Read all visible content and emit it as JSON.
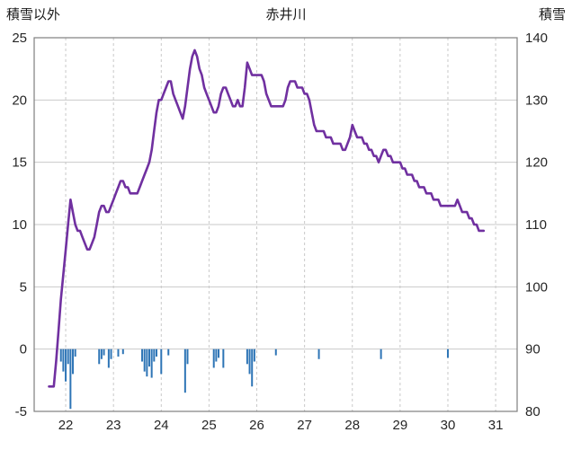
{
  "chart_data": {
    "type": "line",
    "title": "赤井川",
    "left_axis": {
      "title": "積雪以外",
      "min": -5,
      "max": 25,
      "ticks": [
        25,
        20,
        15,
        10,
        5,
        0,
        -5
      ]
    },
    "right_axis": {
      "title": "積雪",
      "min": 80,
      "max": 140,
      "ticks": [
        140,
        130,
        120,
        110,
        100,
        90,
        80
      ]
    },
    "x_axis": {
      "min": 21.34,
      "max": 31.45,
      "ticks": [
        22,
        23,
        24,
        25,
        26,
        27,
        28,
        29,
        30,
        31
      ]
    },
    "grid": {
      "horizontal": "solid",
      "vertical": "dashed"
    },
    "colors": {
      "line": "#7030A0",
      "bar": "#2E75B6",
      "grid": "#c9c9c9",
      "border": "#7f7f7f",
      "tick_text": "#262626"
    },
    "series": [
      {
        "name": "積雪",
        "axis": "right",
        "type": "line",
        "color": "#7030A0",
        "points": [
          [
            21.65,
            84
          ],
          [
            21.7,
            84
          ],
          [
            21.75,
            84
          ],
          [
            21.8,
            88
          ],
          [
            21.85,
            93
          ],
          [
            21.9,
            98
          ],
          [
            21.95,
            102
          ],
          [
            22.0,
            106
          ],
          [
            22.05,
            110
          ],
          [
            22.1,
            114
          ],
          [
            22.15,
            112
          ],
          [
            22.2,
            110
          ],
          [
            22.25,
            109
          ],
          [
            22.3,
            109
          ],
          [
            22.35,
            108
          ],
          [
            22.4,
            107
          ],
          [
            22.45,
            106
          ],
          [
            22.5,
            106
          ],
          [
            22.55,
            107
          ],
          [
            22.6,
            108
          ],
          [
            22.65,
            110
          ],
          [
            22.7,
            112
          ],
          [
            22.75,
            113
          ],
          [
            22.8,
            113
          ],
          [
            22.85,
            112
          ],
          [
            22.9,
            112
          ],
          [
            22.95,
            113
          ],
          [
            23.0,
            114
          ],
          [
            23.05,
            115
          ],
          [
            23.1,
            116
          ],
          [
            23.15,
            117
          ],
          [
            23.2,
            117
          ],
          [
            23.25,
            116
          ],
          [
            23.3,
            116
          ],
          [
            23.35,
            115
          ],
          [
            23.4,
            115
          ],
          [
            23.45,
            115
          ],
          [
            23.5,
            115
          ],
          [
            23.55,
            116
          ],
          [
            23.6,
            117
          ],
          [
            23.65,
            118
          ],
          [
            23.7,
            119
          ],
          [
            23.75,
            120
          ],
          [
            23.8,
            122
          ],
          [
            23.85,
            125
          ],
          [
            23.9,
            128
          ],
          [
            23.95,
            130
          ],
          [
            24.0,
            130
          ],
          [
            24.05,
            131
          ],
          [
            24.1,
            132
          ],
          [
            24.15,
            133
          ],
          [
            24.2,
            133
          ],
          [
            24.25,
            131
          ],
          [
            24.3,
            130
          ],
          [
            24.35,
            129
          ],
          [
            24.4,
            128
          ],
          [
            24.45,
            127
          ],
          [
            24.5,
            129
          ],
          [
            24.55,
            132
          ],
          [
            24.6,
            135
          ],
          [
            24.65,
            137
          ],
          [
            24.7,
            138
          ],
          [
            24.75,
            137
          ],
          [
            24.8,
            135
          ],
          [
            24.85,
            134
          ],
          [
            24.9,
            132
          ],
          [
            24.95,
            131
          ],
          [
            25.0,
            130
          ],
          [
            25.05,
            129
          ],
          [
            25.1,
            128
          ],
          [
            25.15,
            128
          ],
          [
            25.2,
            129
          ],
          [
            25.25,
            131
          ],
          [
            25.3,
            132
          ],
          [
            25.35,
            132
          ],
          [
            25.4,
            131
          ],
          [
            25.45,
            130
          ],
          [
            25.5,
            129
          ],
          [
            25.55,
            129
          ],
          [
            25.6,
            130
          ],
          [
            25.65,
            129
          ],
          [
            25.7,
            129
          ],
          [
            25.75,
            132
          ],
          [
            25.8,
            136
          ],
          [
            25.85,
            135
          ],
          [
            25.9,
            134
          ],
          [
            25.95,
            134
          ],
          [
            26.0,
            134
          ],
          [
            26.05,
            134
          ],
          [
            26.1,
            134
          ],
          [
            26.15,
            133
          ],
          [
            26.2,
            131
          ],
          [
            26.25,
            130
          ],
          [
            26.3,
            129
          ],
          [
            26.35,
            129
          ],
          [
            26.4,
            129
          ],
          [
            26.45,
            129
          ],
          [
            26.5,
            129
          ],
          [
            26.55,
            129
          ],
          [
            26.6,
            130
          ],
          [
            26.65,
            132
          ],
          [
            26.7,
            133
          ],
          [
            26.75,
            133
          ],
          [
            26.8,
            133
          ],
          [
            26.85,
            132
          ],
          [
            26.9,
            132
          ],
          [
            26.95,
            132
          ],
          [
            27.0,
            131
          ],
          [
            27.05,
            131
          ],
          [
            27.1,
            130
          ],
          [
            27.15,
            128
          ],
          [
            27.2,
            126
          ],
          [
            27.25,
            125
          ],
          [
            27.3,
            125
          ],
          [
            27.35,
            125
          ],
          [
            27.4,
            125
          ],
          [
            27.45,
            124
          ],
          [
            27.5,
            124
          ],
          [
            27.55,
            124
          ],
          [
            27.6,
            123
          ],
          [
            27.65,
            123
          ],
          [
            27.7,
            123
          ],
          [
            27.75,
            123
          ],
          [
            27.8,
            122
          ],
          [
            27.85,
            122
          ],
          [
            27.9,
            123
          ],
          [
            27.95,
            124
          ],
          [
            28.0,
            126
          ],
          [
            28.05,
            125
          ],
          [
            28.1,
            124
          ],
          [
            28.15,
            124
          ],
          [
            28.2,
            124
          ],
          [
            28.25,
            123
          ],
          [
            28.3,
            123
          ],
          [
            28.35,
            122
          ],
          [
            28.4,
            122
          ],
          [
            28.45,
            121
          ],
          [
            28.5,
            121
          ],
          [
            28.55,
            120
          ],
          [
            28.6,
            121
          ],
          [
            28.65,
            122
          ],
          [
            28.7,
            122
          ],
          [
            28.75,
            121
          ],
          [
            28.8,
            121
          ],
          [
            28.85,
            120
          ],
          [
            28.9,
            120
          ],
          [
            28.95,
            120
          ],
          [
            29.0,
            120
          ],
          [
            29.05,
            119
          ],
          [
            29.1,
            119
          ],
          [
            29.15,
            118
          ],
          [
            29.2,
            118
          ],
          [
            29.25,
            118
          ],
          [
            29.3,
            117
          ],
          [
            29.35,
            117
          ],
          [
            29.4,
            116
          ],
          [
            29.45,
            116
          ],
          [
            29.5,
            116
          ],
          [
            29.55,
            115
          ],
          [
            29.6,
            115
          ],
          [
            29.65,
            115
          ],
          [
            29.7,
            114
          ],
          [
            29.75,
            114
          ],
          [
            29.8,
            114
          ],
          [
            29.85,
            113
          ],
          [
            29.9,
            113
          ],
          [
            29.95,
            113
          ],
          [
            30.0,
            113
          ],
          [
            30.05,
            113
          ],
          [
            30.1,
            113
          ],
          [
            30.15,
            113
          ],
          [
            30.2,
            114
          ],
          [
            30.25,
            113
          ],
          [
            30.3,
            112
          ],
          [
            30.35,
            112
          ],
          [
            30.4,
            112
          ],
          [
            30.45,
            111
          ],
          [
            30.5,
            111
          ],
          [
            30.55,
            110
          ],
          [
            30.6,
            110
          ],
          [
            30.65,
            109
          ],
          [
            30.7,
            109
          ],
          [
            30.75,
            109
          ]
        ]
      },
      {
        "name": "積雪以外",
        "axis": "left",
        "type": "bar",
        "color": "#2E75B6",
        "points": [
          [
            21.9,
            -1.0
          ],
          [
            21.95,
            -1.8
          ],
          [
            22.0,
            -2.6
          ],
          [
            22.05,
            -1.2
          ],
          [
            22.1,
            -4.8
          ],
          [
            22.15,
            -2.0
          ],
          [
            22.2,
            -0.6
          ],
          [
            22.7,
            -1.2
          ],
          [
            22.75,
            -0.8
          ],
          [
            22.8,
            -0.5
          ],
          [
            22.9,
            -1.5
          ],
          [
            22.95,
            -0.8
          ],
          [
            23.1,
            -0.6
          ],
          [
            23.2,
            -0.4
          ],
          [
            23.6,
            -1.0
          ],
          [
            23.65,
            -1.8
          ],
          [
            23.7,
            -2.2
          ],
          [
            23.75,
            -1.4
          ],
          [
            23.8,
            -2.3
          ],
          [
            23.85,
            -1.0
          ],
          [
            23.9,
            -0.6
          ],
          [
            24.0,
            -2.0
          ],
          [
            24.15,
            -0.5
          ],
          [
            24.5,
            -3.5
          ],
          [
            24.55,
            -1.2
          ],
          [
            25.1,
            -1.5
          ],
          [
            25.15,
            -1.0
          ],
          [
            25.2,
            -0.7
          ],
          [
            25.3,
            -1.5
          ],
          [
            25.8,
            -1.2
          ],
          [
            25.85,
            -2.0
          ],
          [
            25.9,
            -3.0
          ],
          [
            25.95,
            -1.0
          ],
          [
            26.4,
            -0.5
          ],
          [
            27.3,
            -0.8
          ],
          [
            28.6,
            -0.8
          ],
          [
            30.0,
            -0.7
          ]
        ]
      }
    ]
  }
}
